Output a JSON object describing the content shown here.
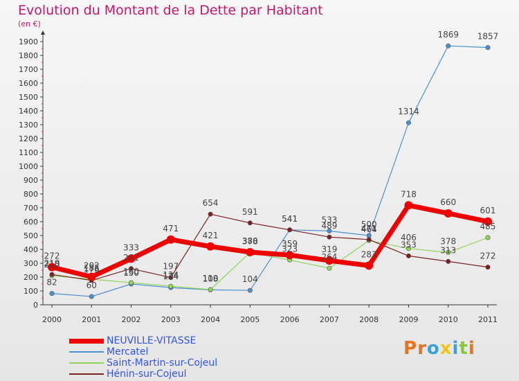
{
  "header": {
    "title": "Evolution du Montant de la Dette par Habitant",
    "unit": "(en €)"
  },
  "brand": {
    "logo_letters": [
      "P",
      "r",
      "o",
      "x",
      "i",
      "t",
      "i"
    ],
    "logo_colors": [
      "#e8731c",
      "#e8731c",
      "#3aa0d6",
      "#f0c419",
      "#3aa0d6",
      "#8cc63f",
      "#e8731c"
    ]
  },
  "chart_data": {
    "type": "line",
    "title": "Evolution du Montant de la Dette par Habitant",
    "subtitle": "(en €)",
    "xlabel": "",
    "ylabel": "",
    "categories": [
      "2000",
      "2001",
      "2002",
      "2003",
      "2004",
      "2005",
      "2006",
      "2007",
      "2008",
      "2009",
      "2010",
      "2011"
    ],
    "ylim": [
      0,
      2000
    ],
    "yticks": [
      0,
      100,
      200,
      300,
      400,
      500,
      600,
      700,
      800,
      900,
      1000,
      1100,
      1200,
      1300,
      1400,
      1500,
      1600,
      1700,
      1800,
      1900
    ],
    "grid": false,
    "legend_position": "bottom-left",
    "series": [
      {
        "name": "NEUVILLE-VITASSE",
        "color": "#ee0000",
        "values": [
          272,
          202,
          333,
          471,
          421,
          380,
          359,
          319,
          283,
          718,
          660,
          601
        ],
        "labels": [
          "272",
          "202",
          "333",
          "471",
          "421",
          "380",
          "359",
          "319",
          "283",
          "718",
          "660",
          "601"
        ]
      },
      {
        "name": "Mercatel",
        "color": "#4a90d0",
        "values": [
          82,
          60,
          150,
          124,
          108,
          104,
          541,
          533,
          500,
          1314,
          1869,
          1857
        ],
        "labels": [
          "82",
          "60",
          "150",
          "124",
          "108",
          "104",
          "541",
          "533",
          "500",
          "1314",
          "1869",
          "1857"
        ]
      },
      {
        "name": "Saint-Martin-sur-Cojeul",
        "color": "#90d45a",
        "values": [
          210,
          185,
          160,
          134,
          110,
          378,
          323,
          264,
          464,
          406,
          378,
          485
        ],
        "labels": [
          "210",
          "185",
          "160",
          "134",
          "110",
          "378",
          "323",
          "264",
          "464",
          "406",
          "378",
          "485"
        ]
      },
      {
        "name": "Hénin-sur-Cojeul",
        "color": "#7a2020",
        "values": [
          219,
          176,
          261,
          197,
          654,
          591,
          541,
          489,
          471,
          353,
          313,
          272
        ],
        "labels": [
          "219",
          "176",
          "261",
          "197",
          "654",
          "591",
          "541",
          "489",
          "471",
          "353",
          "313",
          "272"
        ]
      }
    ]
  }
}
